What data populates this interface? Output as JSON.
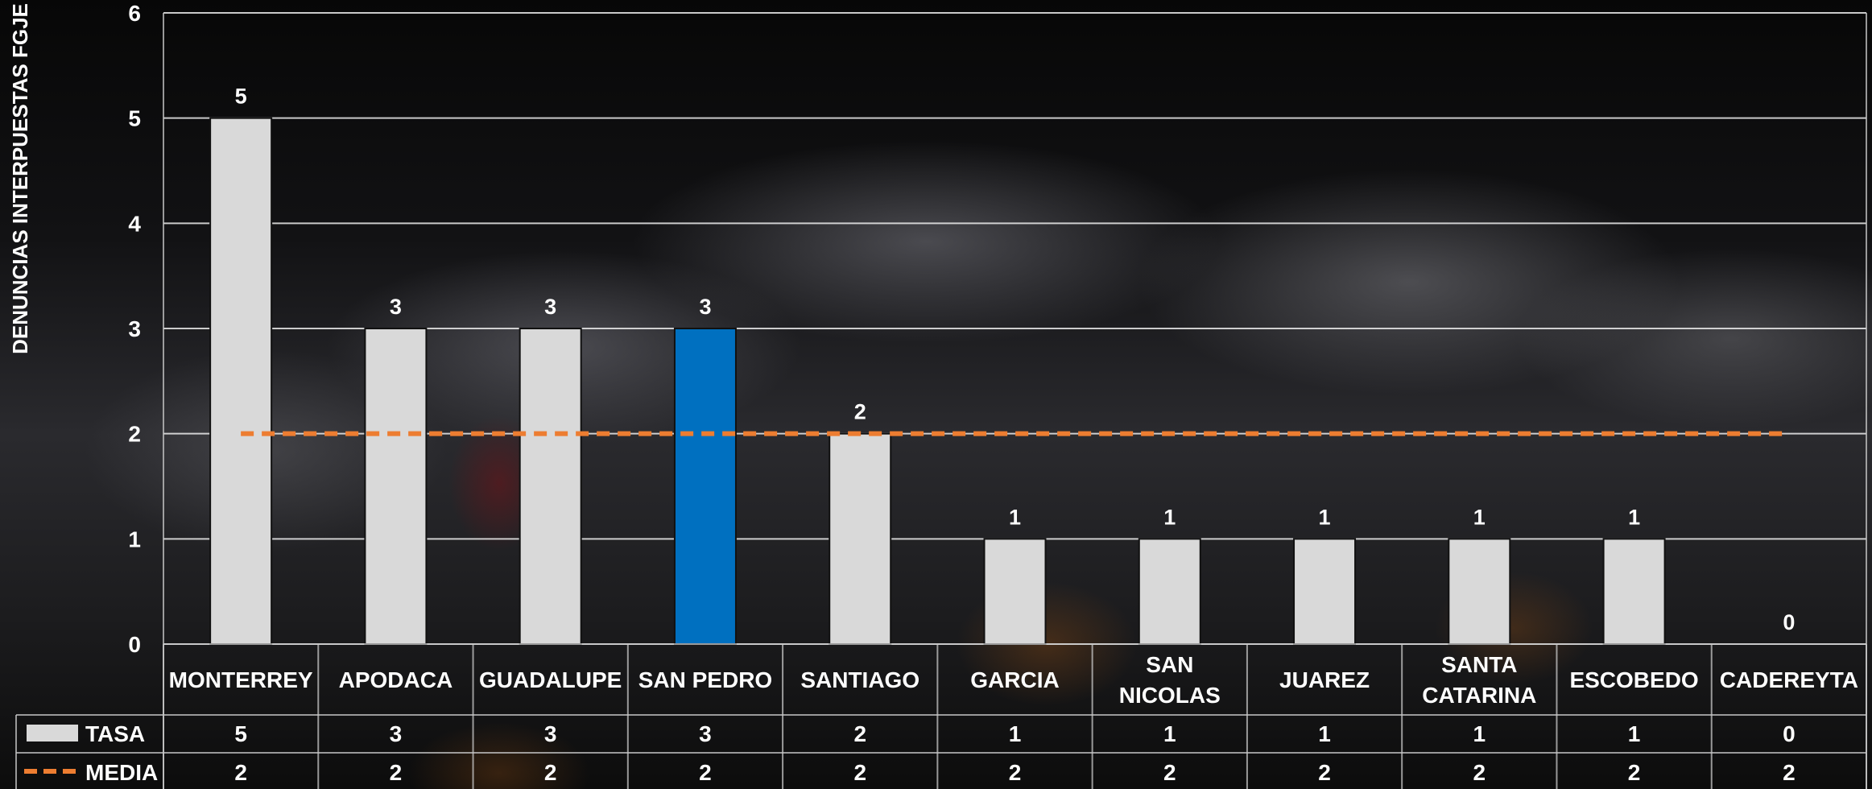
{
  "chart_data": {
    "type": "bar",
    "ylabel": "DENUNCIAS INTERPUESTAS FGJE",
    "ylim": [
      0,
      6
    ],
    "yticks": [
      "0",
      "1",
      "2",
      "3",
      "4",
      "5",
      "6"
    ],
    "grid": true,
    "categories": [
      [
        "MONTERREY"
      ],
      [
        "APODACA"
      ],
      [
        "GUADALUPE"
      ],
      [
        "SAN PEDRO"
      ],
      [
        "SANTIAGO"
      ],
      [
        "GARCIA"
      ],
      [
        "SAN",
        "NICOLAS"
      ],
      [
        "JUAREZ"
      ],
      [
        "SANTA",
        "CATARINA"
      ],
      [
        "ESCOBEDO"
      ],
      [
        "CADEREYTA"
      ]
    ],
    "series": [
      {
        "name": "TASA",
        "kind": "bar",
        "color": "#d9d9d9",
        "highlight_color": "#0070c0",
        "highlight_category": "SAN PEDRO",
        "values": [
          5,
          3,
          3,
          3,
          2,
          1,
          1,
          1,
          1,
          1,
          0
        ]
      },
      {
        "name": "MEDIA",
        "kind": "line",
        "style": "dashed",
        "color": "#ed7d31",
        "values": [
          2,
          2,
          2,
          2,
          2,
          2,
          2,
          2,
          2,
          2,
          2
        ]
      }
    ],
    "legend": "data-table-below"
  }
}
